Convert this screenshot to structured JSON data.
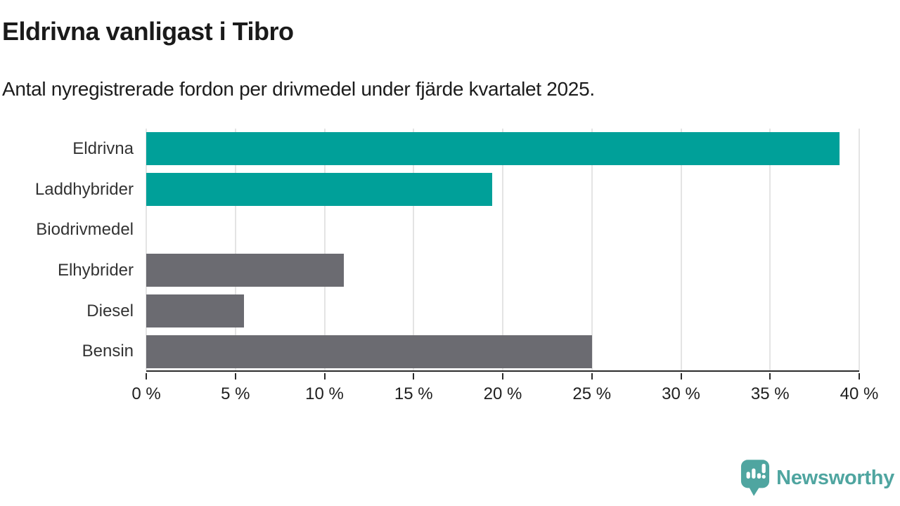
{
  "header": {
    "title": "Eldrivna vanligast i Tibro",
    "subtitle": "Antal nyregistrerade fordon per drivmedel under fjärde kvartalet 2025."
  },
  "chart_data": {
    "type": "bar",
    "orientation": "horizontal",
    "categories": [
      "Eldrivna",
      "Laddhybrider",
      "Biodrivmedel",
      "Elhybrider",
      "Diesel",
      "Bensin"
    ],
    "values": [
      38.9,
      19.4,
      0,
      11.1,
      5.5,
      25
    ],
    "unit": "%",
    "xlim": [
      0,
      40
    ],
    "x_ticks": [
      0,
      5,
      10,
      15,
      20,
      25,
      30,
      35,
      40
    ],
    "x_tick_labels": [
      "0 %",
      "5 %",
      "10 %",
      "15 %",
      "20 %",
      "25 %",
      "30 %",
      "35 %",
      "40 %"
    ],
    "bar_colors": [
      "#00a099",
      "#00a099",
      "#6b6b71",
      "#6b6b71",
      "#6b6b71",
      "#6b6b71"
    ],
    "highlight_color": "#00a099",
    "default_color": "#6b6b71",
    "grid": true,
    "legend": "none"
  },
  "footer": {
    "brand": "Newsworthy",
    "brand_color": "#4fa5a0",
    "logo_icon": "bar-chart-speech-bubble-icon"
  }
}
